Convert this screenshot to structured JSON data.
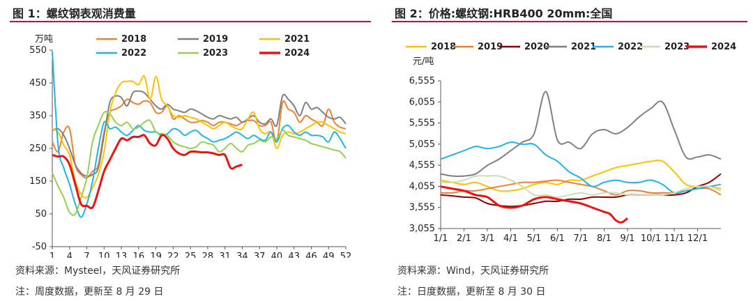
{
  "left": {
    "title": "图 1：螺纹钢表观消费量",
    "source": "资料来源：Mysteel，天风证券研究所",
    "note": "注：周度数据，更新至 8 月 29 日"
  },
  "right": {
    "title": "图 2：价格:螺纹钢:HRB400 20mm:全国",
    "source": "资料来源：Wind，天风证券研究所",
    "note": "注：日度数据，更新至 8 月 30 日"
  },
  "chart_data": [
    {
      "type": "line",
      "title": "",
      "unit_label": "万吨",
      "ylim": [
        -50,
        550
      ],
      "yticks": [
        -50,
        50,
        150,
        250,
        350,
        450,
        550
      ],
      "xlim": [
        1,
        52
      ],
      "xticks": [
        1,
        4,
        7,
        10,
        13,
        16,
        19,
        22,
        25,
        28,
        31,
        34,
        37,
        40,
        43,
        46,
        49,
        52
      ],
      "grid": false,
      "legend_position": "top",
      "colors": {
        "2018": "#f07f30",
        "2019": "#7f7f7f",
        "2021": "#ffc000",
        "2022": "#1fb4e6",
        "2023": "#92d050",
        "2024": "#ee1111"
      },
      "series": [
        {
          "name": "2018",
          "x": [
            1,
            2,
            3,
            4,
            5,
            6,
            7,
            8,
            9,
            10,
            11,
            12,
            13,
            14,
            15,
            16,
            17,
            18,
            19,
            20,
            21,
            22,
            23,
            24,
            25,
            26,
            27,
            28,
            29,
            30,
            31,
            32,
            33,
            34,
            35,
            36,
            37,
            38,
            39,
            40,
            41,
            42,
            43,
            44,
            45,
            46,
            47,
            48,
            49,
            50,
            51,
            52
          ],
          "values": [
            270,
            240,
            300,
            310,
            200,
            170,
            160,
            180,
            200,
            300,
            360,
            370,
            380,
            400,
            390,
            385,
            395,
            390,
            360,
            360,
            380,
            340,
            350,
            340,
            330,
            330,
            335,
            330,
            320,
            330,
            330,
            325,
            320,
            330,
            335,
            335,
            320,
            320,
            330,
            270,
            390,
            370,
            360,
            330,
            350,
            340,
            330,
            320,
            370,
            330,
            315,
            310
          ]
        },
        {
          "name": "2019",
          "x": [
            1,
            2,
            3,
            4,
            5,
            6,
            7,
            8,
            9,
            10,
            11,
            12,
            13,
            14,
            15,
            16,
            17,
            18,
            19,
            20,
            21,
            22,
            23,
            24,
            25,
            26,
            27,
            28,
            29,
            30,
            31,
            32,
            33,
            34,
            35,
            36,
            37,
            38,
            39,
            40,
            41,
            42,
            43,
            44,
            45,
            46,
            47,
            48,
            49,
            50,
            51,
            52
          ],
          "values": [
            305,
            310,
            290,
            250,
            200,
            175,
            165,
            170,
            190,
            290,
            390,
            410,
            405,
            380,
            420,
            425,
            420,
            400,
            380,
            370,
            385,
            370,
            365,
            360,
            370,
            365,
            355,
            345,
            340,
            350,
            345,
            340,
            345,
            330,
            340,
            350,
            330,
            325,
            340,
            320,
            410,
            400,
            380,
            350,
            390,
            370,
            375,
            360,
            345,
            340,
            345,
            325
          ]
        },
        {
          "name": "2021",
          "x": [
            1,
            2,
            3,
            4,
            5,
            6,
            7,
            8,
            9,
            10,
            11,
            12,
            13,
            14,
            15,
            16,
            17,
            18,
            19,
            20,
            21,
            22,
            23,
            24,
            25,
            26,
            27,
            28,
            29,
            30,
            31,
            32,
            33,
            34,
            35,
            36,
            37,
            38,
            39,
            40,
            41,
            42,
            43,
            44,
            45,
            46,
            47,
            48,
            49,
            50,
            51,
            52
          ],
          "values": [
            310,
            300,
            260,
            230,
            150,
            110,
            100,
            130,
            170,
            240,
            360,
            420,
            450,
            455,
            455,
            445,
            470,
            400,
            470,
            400,
            380,
            350,
            345,
            350,
            345,
            340,
            330,
            320,
            310,
            320,
            330,
            320,
            310,
            310,
            340,
            360,
            310,
            295,
            300,
            250,
            290,
            300,
            295,
            300,
            310,
            320,
            330,
            330,
            320,
            310,
            300,
            295
          ]
        },
        {
          "name": "2022",
          "x": [
            1,
            2,
            3,
            4,
            5,
            6,
            7,
            8,
            9,
            10,
            11,
            12,
            13,
            14,
            15,
            16,
            17,
            18,
            19,
            20,
            21,
            22,
            23,
            24,
            25,
            26,
            27,
            28,
            29,
            30,
            31,
            32,
            33,
            34,
            35,
            36,
            37,
            38,
            39,
            40,
            41,
            42,
            43,
            44,
            45,
            46,
            47,
            48,
            49,
            50,
            51,
            52
          ],
          "values": [
            545,
            260,
            190,
            140,
            80,
            40,
            80,
            150,
            250,
            330,
            310,
            315,
            300,
            290,
            305,
            320,
            305,
            300,
            300,
            290,
            295,
            310,
            305,
            290,
            300,
            305,
            290,
            280,
            270,
            275,
            280,
            290,
            300,
            290,
            280,
            290,
            280,
            275,
            300,
            270,
            310,
            320,
            300,
            290,
            300,
            290,
            290,
            285,
            270,
            300,
            280,
            250
          ]
        },
        {
          "name": "2023",
          "x": [
            1,
            2,
            3,
            4,
            5,
            6,
            7,
            8,
            9,
            10,
            11,
            12,
            13,
            14,
            15,
            16,
            17,
            18,
            19,
            20,
            21,
            22,
            23,
            24,
            25,
            26,
            27,
            28,
            29,
            30,
            31,
            32,
            33,
            34,
            35,
            36,
            37,
            38,
            39,
            40,
            41,
            42,
            43,
            44,
            45,
            46,
            47,
            48,
            49,
            50,
            51,
            52
          ],
          "values": [
            175,
            135,
            100,
            55,
            50,
            100,
            160,
            270,
            320,
            360,
            355,
            330,
            320,
            330,
            310,
            315,
            330,
            335,
            300,
            295,
            290,
            270,
            260,
            255,
            250,
            255,
            270,
            265,
            260,
            240,
            250,
            265,
            250,
            240,
            260,
            265,
            275,
            270,
            285,
            280,
            305,
            290,
            285,
            280,
            275,
            265,
            260,
            255,
            250,
            245,
            240,
            220
          ]
        },
        {
          "name": "2024",
          "x": [
            1,
            2,
            3,
            4,
            5,
            6,
            7,
            8,
            9,
            10,
            11,
            12,
            13,
            14,
            15,
            16,
            17,
            18,
            19,
            20,
            21,
            22,
            23,
            24,
            25,
            26,
            27,
            28,
            29,
            30,
            31,
            32,
            33,
            34
          ],
          "values": [
            230,
            225,
            225,
            200,
            140,
            80,
            75,
            70,
            120,
            180,
            215,
            250,
            280,
            275,
            285,
            285,
            290,
            265,
            260,
            290,
            280,
            250,
            235,
            230,
            240,
            240,
            238,
            238,
            235,
            230,
            230,
            190,
            195,
            200
          ]
        }
      ]
    },
    {
      "type": "line",
      "title": "",
      "unit_label": "元/吨",
      "ylim": [
        3055,
        6555
      ],
      "yticks": [
        3055,
        3555,
        4055,
        4555,
        5055,
        5555,
        6055,
        6555
      ],
      "xlim": [
        1,
        13
      ],
      "xticks": [
        "1/1",
        "2/1",
        "3/1",
        "4/1",
        "5/1",
        "6/1",
        "7/1",
        "8/1",
        "9/1",
        "10/1",
        "11/1",
        "12/1"
      ],
      "grid": false,
      "legend_position": "top",
      "colors": {
        "2018": "#ffc000",
        "2019": "#f07f30",
        "2020": "#8b0000",
        "2021": "#7f7f7f",
        "2022": "#1fb4e6",
        "2023": "#c6e0b4",
        "2024": "#ee1111"
      },
      "series": [
        {
          "name": "2018",
          "x": [
            1,
            1.5,
            2,
            2.5,
            3,
            3.5,
            4,
            4.5,
            5,
            5.5,
            6,
            6.5,
            7,
            7.5,
            8,
            8.5,
            9,
            9.5,
            10,
            10.5,
            11,
            11.5,
            12,
            12.5,
            13
          ],
          "values": [
            4200,
            4150,
            4100,
            4150,
            4050,
            3950,
            3950,
            4000,
            4100,
            4150,
            4100,
            4200,
            4200,
            4300,
            4400,
            4500,
            4550,
            4600,
            4650,
            4650,
            4400,
            4100,
            4050,
            4050,
            4000
          ]
        },
        {
          "name": "2019",
          "x": [
            1,
            1.5,
            2,
            2.5,
            3,
            3.5,
            4,
            4.5,
            5,
            5.5,
            6,
            6.5,
            7,
            7.5,
            8,
            8.5,
            9,
            9.5,
            10,
            10.5,
            11,
            11.5,
            12,
            12.5,
            13
          ],
          "values": [
            3900,
            3900,
            3950,
            3950,
            4000,
            4050,
            4100,
            4150,
            4150,
            4180,
            4200,
            4150,
            4100,
            4050,
            3950,
            3850,
            3950,
            3950,
            3900,
            3900,
            3900,
            3950,
            4000,
            4000,
            3850
          ]
        },
        {
          "name": "2020",
          "x": [
            1,
            1.5,
            2,
            2.5,
            3,
            3.5,
            4,
            4.5,
            5,
            5.5,
            6,
            6.5,
            7,
            7.5,
            8,
            8.5,
            9,
            9.5,
            10,
            10.5,
            11,
            11.5,
            12,
            12.5,
            13
          ],
          "values": [
            3850,
            3830,
            3800,
            3780,
            3650,
            3600,
            3580,
            3600,
            3650,
            3700,
            3700,
            3750,
            3750,
            3800,
            3800,
            3800,
            3850,
            3850,
            3850,
            3850,
            3850,
            3900,
            4050,
            4150,
            4350
          ]
        },
        {
          "name": "2021",
          "x": [
            1,
            1.5,
            2,
            2.5,
            3,
            3.5,
            4,
            4.5,
            5,
            5.5,
            6,
            6.5,
            7,
            7.5,
            8,
            8.5,
            9,
            9.5,
            10,
            10.5,
            11,
            11.5,
            12,
            12.5,
            13
          ],
          "values": [
            4350,
            4300,
            4300,
            4350,
            4550,
            4700,
            4900,
            5100,
            5300,
            6300,
            5150,
            5100,
            4950,
            5300,
            5400,
            5300,
            5450,
            5700,
            5900,
            6050,
            5400,
            4750,
            4750,
            4800,
            4700
          ]
        },
        {
          "name": "2022",
          "x": [
            1,
            1.5,
            2,
            2.5,
            3,
            3.5,
            4,
            4.5,
            5,
            5.5,
            6,
            6.5,
            7,
            7.5,
            8,
            8.5,
            9,
            9.5,
            10,
            10.5,
            11,
            11.5,
            12,
            12.5,
            13
          ],
          "values": [
            4700,
            4800,
            4900,
            5000,
            4950,
            5000,
            5100,
            5050,
            5050,
            4800,
            4650,
            4400,
            4250,
            4050,
            4150,
            4200,
            4150,
            4150,
            4200,
            4100,
            3900,
            3950,
            4000,
            4050,
            4100
          ]
        },
        {
          "name": "2023",
          "x": [
            1,
            1.5,
            2,
            2.5,
            3,
            3.5,
            4,
            4.5,
            5,
            5.5,
            6,
            6.5,
            7,
            7.5,
            8,
            8.5,
            9,
            9.5,
            10,
            10.5,
            11,
            11.5,
            12,
            12.5,
            13
          ],
          "values": [
            4150,
            4150,
            4200,
            4300,
            4300,
            4300,
            4200,
            4050,
            3850,
            3850,
            3800,
            3850,
            3900,
            3850,
            3900,
            3900,
            3850,
            3850,
            3850,
            3850,
            3900,
            4000,
            4050,
            4050,
            3950
          ]
        },
        {
          "name": "2024",
          "x": [
            1,
            1.5,
            2,
            2.5,
            3,
            3.5,
            4,
            4.5,
            5,
            5.5,
            6,
            6.5,
            7,
            7.5,
            8,
            8.25,
            8.5,
            8.75,
            9
          ],
          "values": [
            4050,
            4000,
            3950,
            3850,
            3800,
            3600,
            3550,
            3600,
            3750,
            3800,
            3750,
            3700,
            3650,
            3550,
            3450,
            3400,
            3250,
            3200,
            3300
          ]
        }
      ]
    }
  ]
}
